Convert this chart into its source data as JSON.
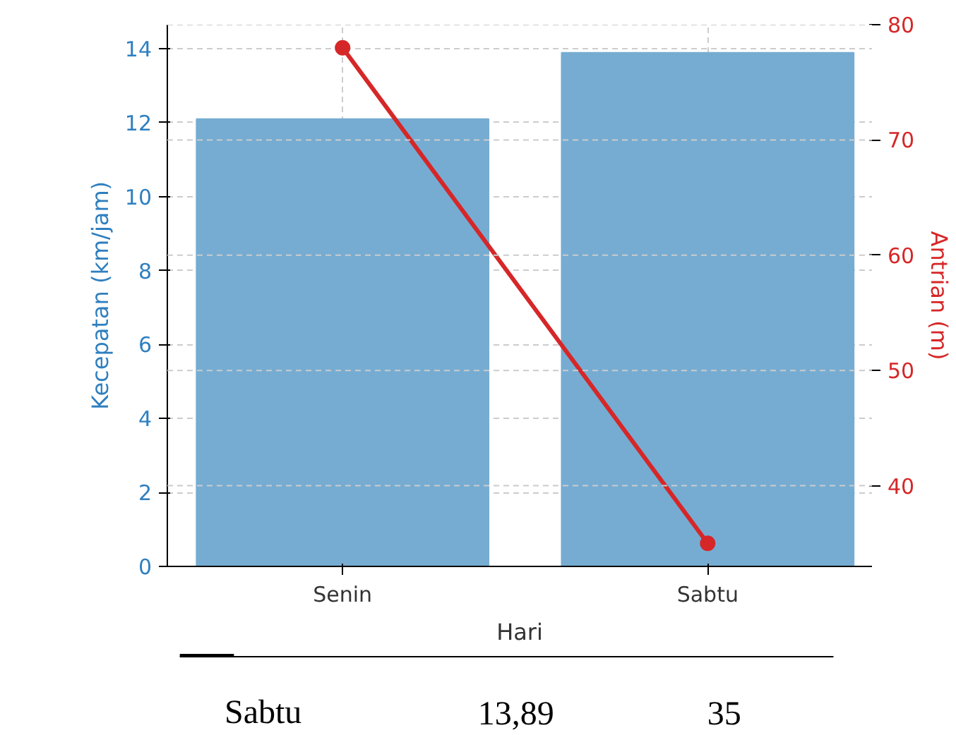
{
  "chart_data": {
    "type": "bar",
    "xlabel": "Hari",
    "ylabel": "Kecepatan (km/jam)",
    "y2label": "Antrian (m)",
    "categories": [
      "Senin",
      "Sabtu"
    ],
    "series": [
      {
        "color": "#76acd2",
        "values": [
          12.1,
          13.89
        ]
      },
      {
        "type": "line",
        "axis": "y2",
        "color": "#d62728",
        "values": [
          78,
          35
        ],
        "marker": "circle",
        "line_style": "solid"
      }
    ],
    "ylim": [
      0,
      14.65
    ],
    "yticks": [
      0,
      2,
      4,
      6,
      8,
      10,
      12,
      14
    ],
    "y2lim": [
      33,
      80
    ],
    "y2ticks": [
      40,
      50,
      60,
      70,
      80
    ],
    "grid": true,
    "annotations": [
      "Sabtu",
      "13,89",
      "35"
    ]
  }
}
